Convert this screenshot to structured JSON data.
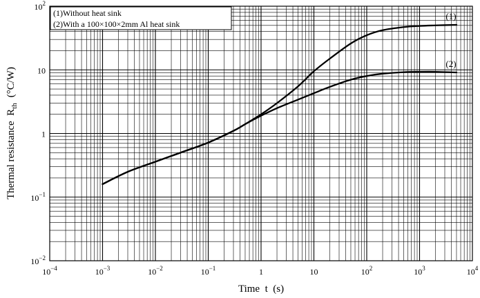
{
  "chart_data": {
    "type": "line",
    "title": "",
    "xlabel": "Time  t  (s)",
    "ylabel_main": "Thermal resistance  R",
    "ylabel_sub": "th",
    "ylabel_unit": "(°C/W)",
    "x_scale": "log",
    "y_scale": "log",
    "xlim": [
      0.0001,
      10000
    ],
    "ylim": [
      0.01,
      100
    ],
    "grid": true,
    "legend_position": "top-left",
    "legend": [
      "(1)Without heat sink",
      "(2)With a 100×100×2mm Al heat sink"
    ],
    "x_ticks": [
      {
        "base": "10",
        "exp": "−4"
      },
      {
        "base": "10",
        "exp": "−3"
      },
      {
        "base": "10",
        "exp": "−2"
      },
      {
        "base": "10",
        "exp": "−1"
      },
      {
        "base": "1",
        "exp": ""
      },
      {
        "base": "10",
        "exp": ""
      },
      {
        "base": "10",
        "exp": "2"
      },
      {
        "base": "10",
        "exp": "3"
      },
      {
        "base": "10",
        "exp": "4"
      }
    ],
    "y_ticks": [
      {
        "base": "10",
        "exp": "−2"
      },
      {
        "base": "10",
        "exp": "−1"
      },
      {
        "base": "1",
        "exp": ""
      },
      {
        "base": "10",
        "exp": ""
      },
      {
        "base": "10",
        "exp": "2"
      }
    ],
    "series": [
      {
        "name": "(1)",
        "x": [
          0.001,
          0.003,
          0.01,
          0.03,
          0.1,
          0.3,
          0.5,
          1,
          2,
          5,
          10,
          20,
          50,
          100,
          200,
          500,
          1000,
          2000,
          5000
        ],
        "y": [
          0.16,
          0.25,
          0.36,
          0.5,
          0.72,
          1.1,
          1.4,
          2.0,
          3.0,
          5.5,
          9.5,
          15,
          26,
          35,
          42,
          47,
          49,
          50,
          51
        ]
      },
      {
        "name": "(2)",
        "x": [
          0.001,
          0.003,
          0.01,
          0.03,
          0.1,
          0.3,
          0.5,
          1,
          2,
          5,
          10,
          20,
          50,
          100,
          200,
          500,
          1000,
          2000,
          5000
        ],
        "y": [
          0.16,
          0.25,
          0.36,
          0.5,
          0.72,
          1.1,
          1.4,
          1.9,
          2.5,
          3.4,
          4.3,
          5.4,
          7.0,
          8.0,
          8.7,
          9.2,
          9.3,
          9.3,
          9.1
        ]
      }
    ],
    "colors": {
      "line": "#000000",
      "grid": "#000000",
      "background": "#ffffff"
    }
  }
}
